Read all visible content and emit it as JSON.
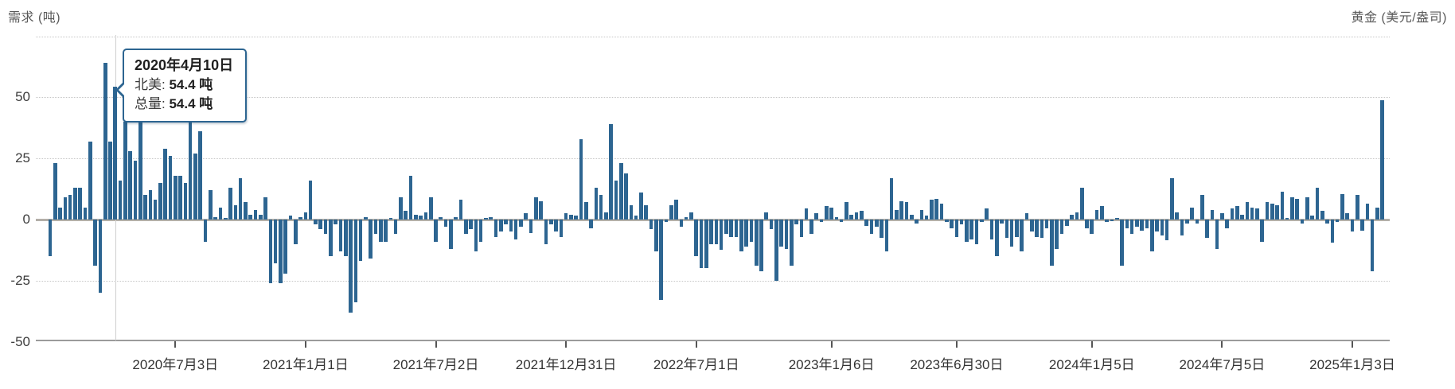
{
  "titles": {
    "left": "需求 (吨)",
    "right": "黄金 (美元/盎司)"
  },
  "tooltip": {
    "date": "2020年4月10日",
    "rows": [
      {
        "label": "北美:",
        "value": "54.4 吨"
      },
      {
        "label": "总量:",
        "value": "54.4 吨"
      }
    ]
  },
  "colors": {
    "bar": "#2d6591",
    "tooltip_border": "#2d6591",
    "crosshair": "#cfcfcf",
    "grid": "#c6c6c6",
    "zero_line": "#b3afa8",
    "axis_line": "#9b9b9b",
    "tick": "#555555",
    "axis_text": "#3d3d3d",
    "title_text": "#595959"
  },
  "chart_data": {
    "type": "bar",
    "title": "",
    "ylabel_left": "需求 (吨)",
    "ylabel_right": "黄金 (美元/盎司)",
    "unit": "吨",
    "ylim": [
      -50,
      75
    ],
    "yticks": [
      50,
      25,
      0,
      -25,
      -50
    ],
    "grid_values": [
      75,
      50,
      25,
      -25
    ],
    "grid": "dotted-horizontal",
    "legend_position": "none",
    "x_start_date": "2020-01-10",
    "x_interval_days": 7,
    "xtick_labels": [
      "2020年7月3日",
      "2021年1月1日",
      "2021年7月2日",
      "2021年12月31日",
      "2022年7月1日",
      "2023年1月6日",
      "2023年6月30日",
      "2024年1月5日",
      "2024年7月5日",
      "2025年1月3日"
    ],
    "xtick_week_index": [
      25,
      51,
      77,
      103,
      129,
      156,
      181,
      208,
      234,
      260
    ],
    "highlight": {
      "week_index": 13,
      "date": "2020年4月10日",
      "region_label": "北美",
      "region_value_tons": 54.4,
      "total_tons": 54.4
    },
    "values": [
      -15,
      23,
      5,
      9,
      10,
      13,
      13,
      5,
      32,
      -19,
      -30,
      64,
      32,
      54.4,
      16,
      40,
      28,
      24,
      40,
      10,
      12,
      8,
      15,
      29,
      26,
      18,
      18,
      15,
      40,
      27,
      36,
      -9,
      12,
      1,
      5,
      0.5,
      13,
      6,
      17,
      7,
      2,
      4,
      2,
      9,
      -26,
      -18,
      -26,
      -22,
      1.5,
      -10,
      1,
      3,
      16,
      -2,
      -4,
      -6,
      -15,
      -2,
      -13,
      -15,
      -38,
      -34,
      -17,
      1,
      -16,
      -6,
      -9,
      -9,
      0.5,
      -6,
      9,
      3.5,
      18,
      2,
      1.5,
      3,
      9,
      -9,
      1,
      -3,
      -12,
      1,
      8,
      -6,
      -4,
      -13,
      -9,
      0.5,
      1,
      -7,
      -5,
      -2,
      -5,
      -8,
      -3,
      2.5,
      -5.5,
      9,
      7.5,
      -10,
      -2,
      -5,
      -7,
      2.5,
      2,
      1.5,
      33,
      7,
      -3.5,
      13,
      10,
      3,
      39,
      16,
      23,
      19,
      6,
      1.5,
      11,
      6,
      -4,
      -13,
      -33,
      -1,
      6,
      8,
      -3,
      1,
      3,
      -15,
      -20,
      -20,
      -10,
      -10,
      -12.5,
      -6,
      -7,
      -7,
      -13,
      -11,
      -9,
      -19,
      -21,
      3,
      -4,
      -25,
      -11,
      -12,
      -19,
      -2,
      -7,
      4.5,
      -6,
      2.5,
      -1,
      5.5,
      5,
      1,
      -1,
      7,
      2,
      3,
      3.5,
      -2.5,
      -6,
      -3,
      -7.5,
      -13,
      17,
      4,
      7.5,
      7,
      2,
      -1.5,
      4,
      1.5,
      8,
      8.5,
      6.5,
      -1,
      -3.5,
      -7,
      -2,
      -9,
      -8,
      -10,
      -1,
      4.5,
      -8,
      -15,
      -1.5,
      -7.5,
      -11,
      -7,
      -13,
      2.5,
      -5,
      -7,
      -7.5,
      -3.5,
      -19,
      -12,
      -6,
      -2.5,
      2,
      3,
      13,
      -3.5,
      -6,
      4,
      5.5,
      -1,
      -0.5,
      0.5,
      -19,
      -3.5,
      -6,
      -3,
      -4.5,
      -3.5,
      -13,
      -5,
      -6.5,
      -8.5,
      17,
      3,
      -6.5,
      -1.5,
      5,
      -1.5,
      10,
      -7.5,
      4,
      -12,
      2.5,
      -3.5,
      4.5,
      5.5,
      2,
      7,
      5,
      4.5,
      -9,
      7,
      6.5,
      6,
      11.5,
      0.5,
      9,
      8.5,
      -1.5,
      9,
      1.5,
      13,
      3.5,
      -1.5,
      -9.5,
      -1,
      10.5,
      2.5,
      -5,
      10,
      -4.5,
      6.5,
      -21,
      5,
      48.9
    ]
  }
}
